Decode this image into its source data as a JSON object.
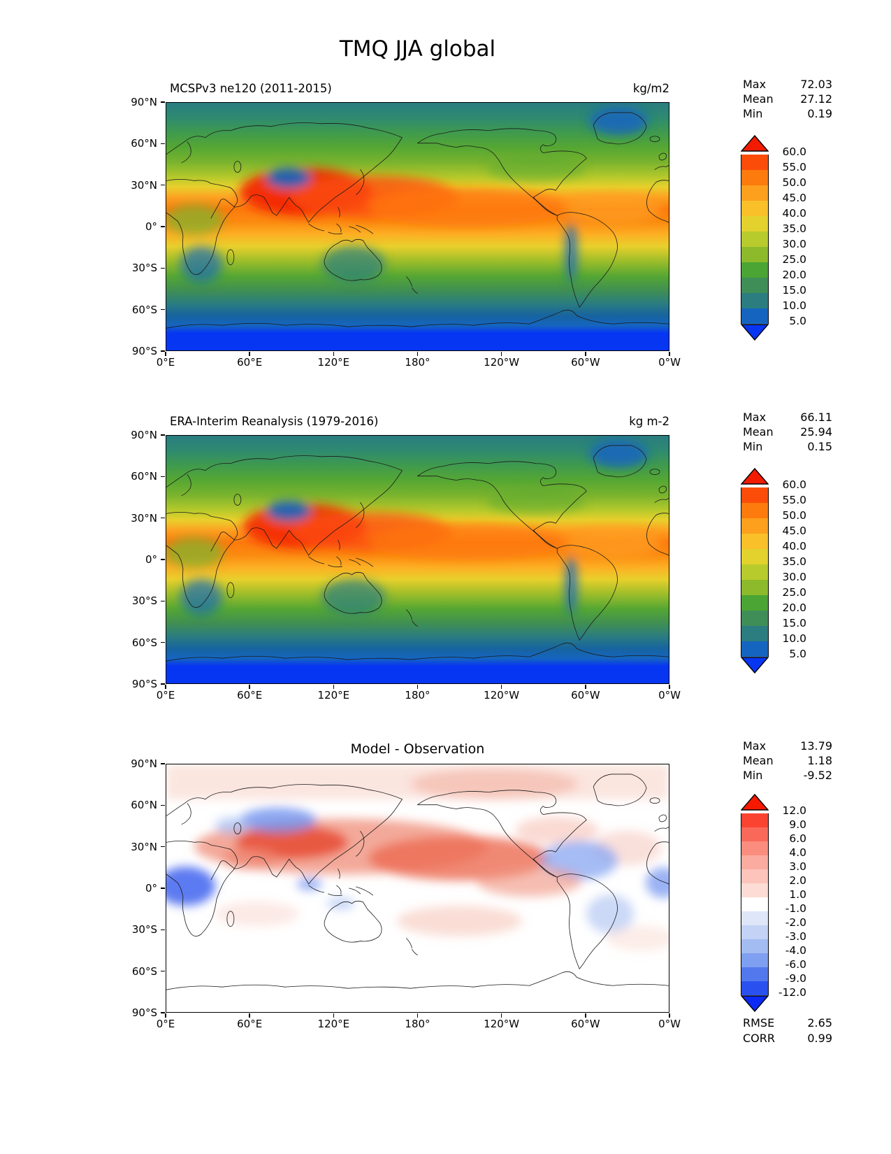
{
  "figure": {
    "title": "TMQ JJA global"
  },
  "axes": {
    "lat_ticks": [
      "90°N",
      "60°N",
      "30°N",
      "0°",
      "30°S",
      "60°S",
      "90°S"
    ],
    "lon_ticks": [
      "0°E",
      "60°E",
      "120°E",
      "180°",
      "120°W",
      "60°W",
      "0°W"
    ]
  },
  "panels": [
    {
      "title": "MCSPv3 ne120 (2011-2015)",
      "units": "kg/m2",
      "stats": [
        {
          "label": "Max",
          "value": "72.03"
        },
        {
          "label": "Mean",
          "value": "27.12"
        },
        {
          "label": "Min",
          "value": "0.19"
        }
      ],
      "colorbar": {
        "levels": [
          "60.0",
          "55.0",
          "50.0",
          "45.0",
          "40.0",
          "35.0",
          "30.0",
          "25.0",
          "20.0",
          "15.0",
          "10.0",
          "5.0"
        ],
        "over": "#f21b00",
        "segments": [
          "#fb4d09",
          "#fd7a0c",
          "#fca01d",
          "#f9c02a",
          "#e3d22e",
          "#b8cb2c",
          "#8cba2b",
          "#4aa534",
          "#3f8e58",
          "#2b7d80",
          "#1565c0"
        ],
        "under": "#0736f2"
      }
    },
    {
      "title": "ERA-Interim Reanalysis (1979-2016)",
      "units": "kg m-2",
      "stats": [
        {
          "label": "Max",
          "value": "66.11"
        },
        {
          "label": "Mean",
          "value": "25.94"
        },
        {
          "label": "Min",
          "value": "0.15"
        }
      ],
      "colorbar": {
        "levels": [
          "60.0",
          "55.0",
          "50.0",
          "45.0",
          "40.0",
          "35.0",
          "30.0",
          "25.0",
          "20.0",
          "15.0",
          "10.0",
          "5.0"
        ],
        "over": "#f21b00",
        "segments": [
          "#fb4d09",
          "#fd7a0c",
          "#fca01d",
          "#f9c02a",
          "#e3d22e",
          "#b8cb2c",
          "#8cba2b",
          "#4aa534",
          "#3f8e58",
          "#2b7d80",
          "#1565c0"
        ],
        "under": "#0736f2"
      }
    },
    {
      "title": "Model - Observation",
      "units": "",
      "stats": [
        {
          "label": "Max",
          "value": "13.79"
        },
        {
          "label": "Mean",
          "value": "1.18"
        },
        {
          "label": "Min",
          "value": "-9.52"
        }
      ],
      "colorbar": {
        "levels": [
          "12.0",
          "9.0",
          "6.0",
          "4.0",
          "3.0",
          "2.0",
          "1.0",
          "-1.0",
          "-2.0",
          "-3.0",
          "-4.0",
          "-6.0",
          "-9.0",
          "-12.0"
        ],
        "over": "#f61900",
        "segments": [
          "#fb4332",
          "#f9695a",
          "#fa8d7e",
          "#fbab9f",
          "#fcc4bb",
          "#fddcd5",
          "#ffffff",
          "#dfe6f8",
          "#c3d2f5",
          "#a3bcf2",
          "#7f9ff0",
          "#5378ee",
          "#2a51f0"
        ],
        "under": "#0b2af5"
      },
      "metrics": [
        {
          "label": "RMSE",
          "value": "2.65"
        },
        {
          "label": "CORR",
          "value": "0.99"
        }
      ]
    }
  ],
  "chart_data": [
    {
      "type": "heatmap",
      "subtype": "filled-contour-map",
      "panel": "model",
      "title": "MCSPv3 ne120 (2011-2015)",
      "variable": "TMQ",
      "season": "JJA",
      "region": "global",
      "units": "kg/m2",
      "lon_range": [
        0,
        360
      ],
      "lat_range": [
        -90,
        90
      ],
      "contour_levels": [
        5,
        10,
        15,
        20,
        25,
        30,
        35,
        40,
        45,
        50,
        55,
        60
      ],
      "stats": {
        "max": 72.03,
        "mean": 27.12,
        "min": 0.19
      },
      "colorbar_extend": "both"
    },
    {
      "type": "heatmap",
      "subtype": "filled-contour-map",
      "panel": "observation",
      "title": "ERA-Interim Reanalysis (1979-2016)",
      "variable": "TMQ",
      "season": "JJA",
      "region": "global",
      "units": "kg m-2",
      "lon_range": [
        0,
        360
      ],
      "lat_range": [
        -90,
        90
      ],
      "contour_levels": [
        5,
        10,
        15,
        20,
        25,
        30,
        35,
        40,
        45,
        50,
        55,
        60
      ],
      "stats": {
        "max": 66.11,
        "mean": 25.94,
        "min": 0.15
      },
      "colorbar_extend": "both"
    },
    {
      "type": "heatmap",
      "subtype": "filled-contour-map",
      "panel": "difference",
      "title": "Model - Observation",
      "variable": "TMQ",
      "season": "JJA",
      "region": "global",
      "units": "kg/m2",
      "lon_range": [
        0,
        360
      ],
      "lat_range": [
        -90,
        90
      ],
      "contour_levels": [
        -12,
        -9,
        -6,
        -4,
        -3,
        -2,
        -1,
        1,
        2,
        3,
        4,
        6,
        9,
        12
      ],
      "stats": {
        "max": 13.79,
        "mean": 1.18,
        "min": -9.52,
        "rmse": 2.65,
        "corr": 0.99
      },
      "colorbar_extend": "both"
    }
  ]
}
